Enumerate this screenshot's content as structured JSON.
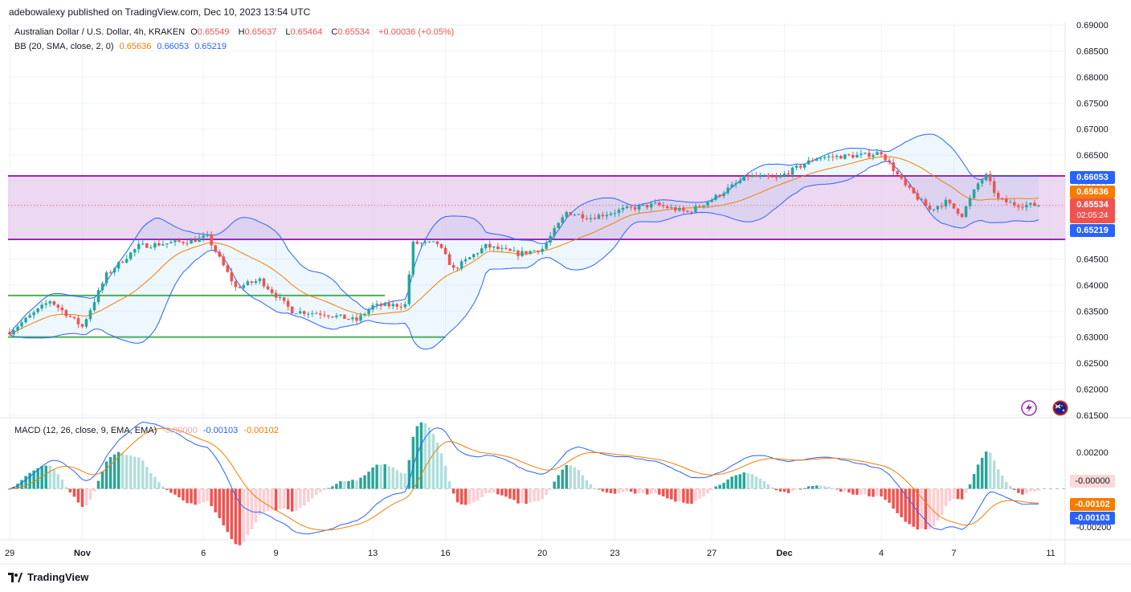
{
  "publisher_line": "adebowalexy published on TradingView.com, Dec 10, 2023 13:54 UTC",
  "legend": {
    "symbol": "Australian Dollar / U.S. Dollar, 4h, KRAKEN",
    "o_label": "O",
    "o": "0.65549",
    "h_label": "H",
    "h": "0.65637",
    "l_label": "L",
    "l": "0.65464",
    "c_label": "C",
    "c": "0.65534",
    "change": "+0.00036 (+0.05%)",
    "bb_label": "BB (20, SMA, close, 2, 0)",
    "bb_basis": "0.65636",
    "bb_upper": "0.66053",
    "bb_lower": "0.65219",
    "macd_label": "MACD (12, 26, close, 9, EMA, EMA)",
    "macd_hist": "-0.00000",
    "macd_line": "-0.00103",
    "macd_signal": "-0.00102"
  },
  "price_tags": {
    "upper": "0.66053",
    "basis": "0.65636",
    "last": "0.65534",
    "countdown": "02:05:24",
    "lower": "0.65219"
  },
  "macd_tags": {
    "hist": "-0.00000",
    "signal": "-0.00102",
    "macd": "-0.00103",
    "partial": "-0.00200"
  },
  "footer": {
    "brand": "TradingView"
  },
  "colors": {
    "up": "#26a69a",
    "down": "#ef5350",
    "basis": "#f57c00",
    "band": "#2962ff",
    "zone": "#9c27b0",
    "support": "#4caf50",
    "hist_up_light": "#b2dfdb",
    "hist_down_light": "#ffcdd2"
  },
  "chart_data": {
    "type": "candlestick",
    "price_axis": {
      "ticks": [
        "0.69000",
        "0.68500",
        "0.68000",
        "0.67500",
        "0.67000",
        "0.66500",
        "0.66000",
        "0.65500",
        "0.65000",
        "0.64500",
        "0.64000",
        "0.63500",
        "0.63000",
        "0.62500",
        "0.62000",
        "0.61500"
      ],
      "ylim": [
        0.6145,
        0.6905
      ]
    },
    "macd_axis": {
      "ticks": [
        "0.00200"
      ],
      "ylim": [
        -0.0028,
        0.0039
      ]
    },
    "time_axis": {
      "labels": [
        "29",
        "Nov",
        "6",
        "9",
        "13",
        "16",
        "20",
        "23",
        "27",
        "Dec",
        "4",
        "7",
        "11"
      ],
      "label_positions_in_bars": [
        0,
        18,
        48,
        66,
        90,
        108,
        132,
        150,
        174,
        192,
        216,
        234,
        258
      ]
    },
    "horizontal_levels": [
      {
        "name": "resistance-zone-top",
        "value": 0.661,
        "color": "#9c27b0"
      },
      {
        "name": "resistance-zone-bottom",
        "value": 0.6488,
        "color": "#9c27b0"
      },
      {
        "name": "support-upper",
        "value": 0.638,
        "color": "#4caf50"
      },
      {
        "name": "support-lower",
        "value": 0.63,
        "color": "#4caf50"
      },
      {
        "name": "last-price",
        "value": 0.65534,
        "color": "#ef5350"
      }
    ],
    "price_path_keypoints": [
      [
        0,
        0.631
      ],
      [
        10,
        0.637
      ],
      [
        18,
        0.632
      ],
      [
        24,
        0.642
      ],
      [
        32,
        0.6475
      ],
      [
        45,
        0.6485
      ],
      [
        49,
        0.6493
      ],
      [
        56,
        0.6395
      ],
      [
        62,
        0.641
      ],
      [
        70,
        0.635
      ],
      [
        78,
        0.6345
      ],
      [
        86,
        0.6332
      ],
      [
        90,
        0.636
      ],
      [
        98,
        0.6362
      ],
      [
        100,
        0.648
      ],
      [
        106,
        0.648
      ],
      [
        110,
        0.643
      ],
      [
        118,
        0.6475
      ],
      [
        126,
        0.646
      ],
      [
        132,
        0.647
      ],
      [
        138,
        0.654
      ],
      [
        144,
        0.653
      ],
      [
        152,
        0.6545
      ],
      [
        160,
        0.6555
      ],
      [
        168,
        0.654
      ],
      [
        174,
        0.6565
      ],
      [
        183,
        0.661
      ],
      [
        190,
        0.6605
      ],
      [
        200,
        0.6645
      ],
      [
        212,
        0.665
      ],
      [
        216,
        0.6655
      ],
      [
        222,
        0.659
      ],
      [
        228,
        0.6545
      ],
      [
        232,
        0.656
      ],
      [
        236,
        0.6535
      ],
      [
        240,
        0.6595
      ],
      [
        242,
        0.661
      ],
      [
        245,
        0.6565
      ],
      [
        249,
        0.6555
      ],
      [
        255,
        0.65534
      ]
    ],
    "bars_estimated": 256,
    "series": [
      {
        "name": "BB basis",
        "kind": "sma20"
      },
      {
        "name": "BB upper",
        "kind": "sma20+2sd"
      },
      {
        "name": "BB lower",
        "kind": "sma20-2sd"
      },
      {
        "name": "MACD",
        "kind": "ema12-ema26"
      },
      {
        "name": "Signal",
        "kind": "ema9 of macd"
      },
      {
        "name": "Histogram",
        "kind": "macd-signal"
      }
    ],
    "macd_last": {
      "hist": -0.0,
      "macd": -0.00103,
      "signal": -0.00102
    }
  }
}
